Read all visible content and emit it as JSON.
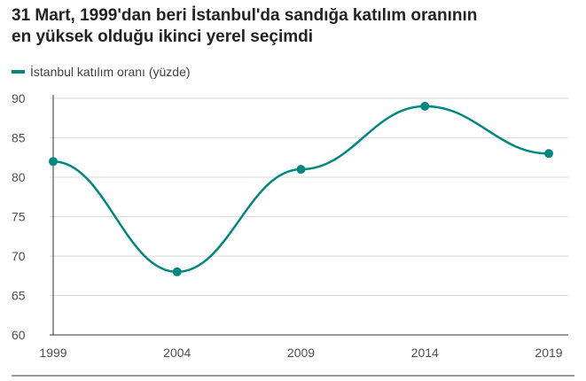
{
  "title_lines": [
    "31 Mart, 1999'dan beri İstanbul'da sandığa katılım oranının",
    "en yüksek olduğu ikinci yerel seçimdi"
  ],
  "colors": {
    "series": "#00887e",
    "grid": "#d9d9d9",
    "axis": "#333333",
    "text": "#222222"
  },
  "chart_data": {
    "type": "line",
    "title": "31 Mart, 1999'dan beri İstanbul'da sandığa katılım oranının en yüksek olduğu ikinci yerel seçimdi",
    "xlabel": "",
    "ylabel": "",
    "x": [
      "1999",
      "2004",
      "2009",
      "2014",
      "2019"
    ],
    "series": [
      {
        "name": "İstanbul katılım oranı (yüzde)",
        "values": [
          82,
          68,
          81,
          89,
          83
        ]
      }
    ],
    "ylim": [
      60,
      90
    ],
    "yticks": [
      "90",
      "85",
      "80",
      "75",
      "70",
      "65",
      "60"
    ],
    "grid": true,
    "smooth": true,
    "legend_position": "top-left"
  }
}
